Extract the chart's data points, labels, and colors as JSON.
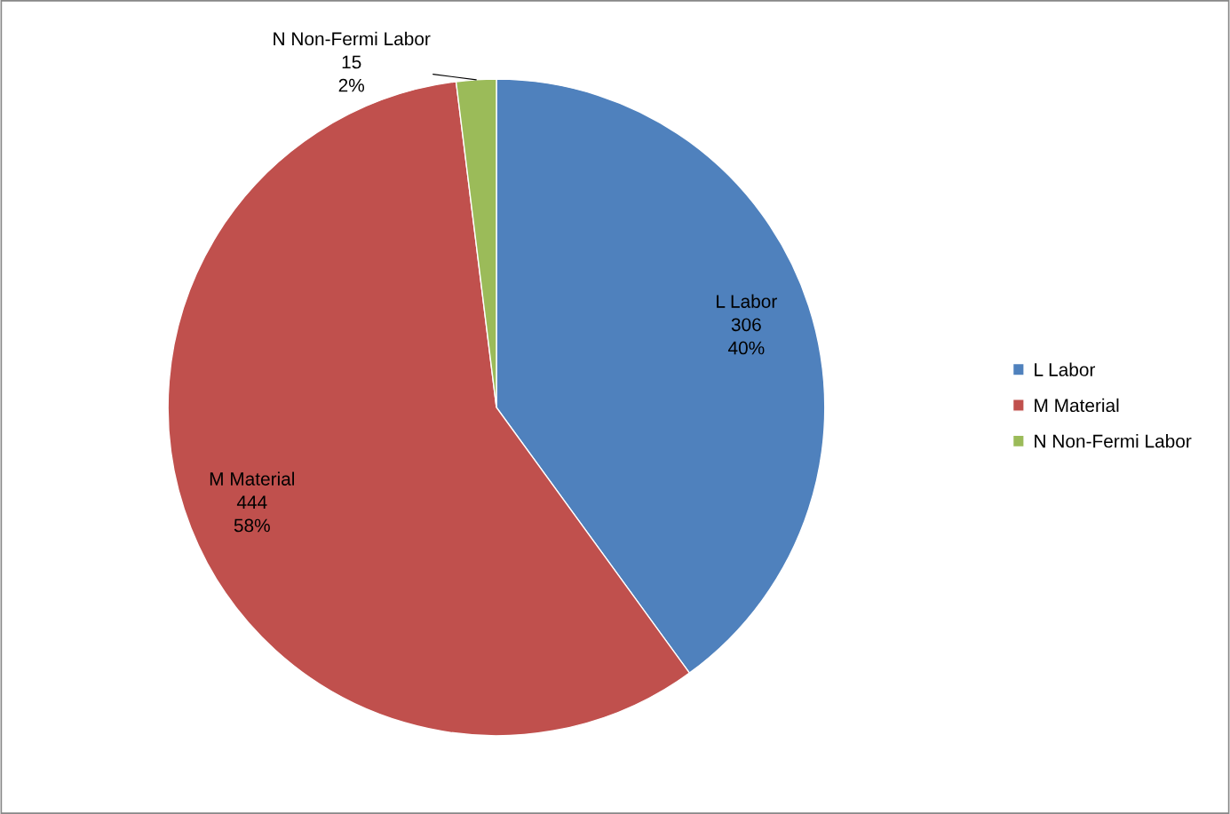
{
  "chart_data": {
    "type": "pie",
    "categories": [
      "L Labor",
      "M Material",
      "N Non-Fermi Labor"
    ],
    "values": [
      306,
      444,
      15
    ],
    "colors": [
      "#4f81bd",
      "#c0504d",
      "#9bbb59"
    ],
    "value_labels": [
      "L Labor\n306\n40%",
      "M Material\n444\n58%",
      "N Non-Fermi Labor\n15\n2%"
    ],
    "legend": "right"
  }
}
